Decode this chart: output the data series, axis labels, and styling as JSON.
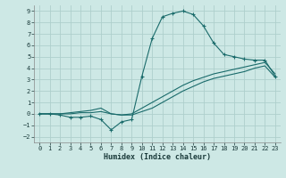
{
  "xlabel": "Humidex (Indice chaleur)",
  "bg_color": "#cde8e5",
  "grid_color": "#aecfcc",
  "line_color": "#1a6b6b",
  "xlim": [
    -0.5,
    23.5
  ],
  "ylim": [
    -2.5,
    9.5
  ],
  "xticks": [
    0,
    1,
    2,
    3,
    4,
    5,
    6,
    7,
    8,
    9,
    10,
    11,
    12,
    13,
    14,
    15,
    16,
    17,
    18,
    19,
    20,
    21,
    22,
    23
  ],
  "yticks": [
    -2,
    -1,
    0,
    1,
    2,
    3,
    4,
    5,
    6,
    7,
    8,
    9
  ],
  "line_main_x": [
    0,
    1,
    2,
    3,
    4,
    5,
    6,
    7,
    8,
    9,
    10,
    11,
    12,
    13,
    14,
    15,
    16,
    17,
    18,
    19,
    20,
    21,
    22,
    23
  ],
  "line_main_y": [
    0,
    0,
    -0.1,
    -0.3,
    -0.3,
    -0.2,
    -0.5,
    -1.4,
    -0.7,
    -0.5,
    3.3,
    6.6,
    8.5,
    8.8,
    9.0,
    8.7,
    7.7,
    6.2,
    5.2,
    5.0,
    4.8,
    4.7,
    4.7,
    3.3
  ],
  "line_upper_x": [
    0,
    1,
    2,
    3,
    4,
    5,
    6,
    7,
    8,
    9,
    10,
    11,
    12,
    13,
    14,
    15,
    16,
    17,
    18,
    19,
    20,
    21,
    22,
    23
  ],
  "line_upper_y": [
    0,
    0,
    0,
    0.1,
    0.2,
    0.3,
    0.5,
    0.0,
    -0.1,
    0.0,
    0.5,
    1.0,
    1.5,
    2.0,
    2.5,
    2.9,
    3.2,
    3.5,
    3.7,
    3.9,
    4.1,
    4.3,
    4.5,
    3.5
  ],
  "line_lower_x": [
    0,
    1,
    2,
    3,
    4,
    5,
    6,
    7,
    8,
    9,
    10,
    11,
    12,
    13,
    14,
    15,
    16,
    17,
    18,
    19,
    20,
    21,
    22,
    23
  ],
  "line_lower_y": [
    0,
    0,
    0,
    0.0,
    0.1,
    0.1,
    0.2,
    0.0,
    -0.1,
    -0.1,
    0.2,
    0.5,
    1.0,
    1.5,
    2.0,
    2.4,
    2.8,
    3.1,
    3.3,
    3.5,
    3.7,
    4.0,
    4.2,
    3.2
  ]
}
